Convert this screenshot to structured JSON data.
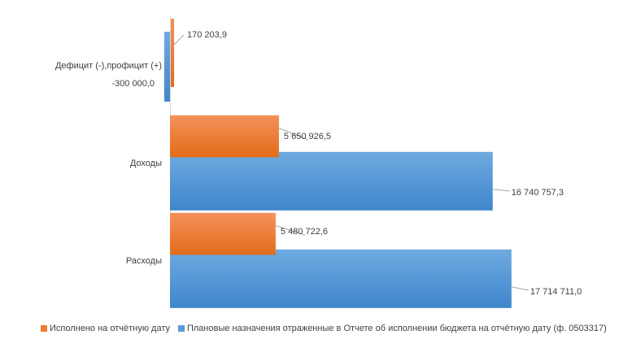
{
  "chart_data": {
    "type": "bar",
    "orientation": "horizontal",
    "categories": [
      "Дефицит (-),профицит (+)",
      "Доходы",
      "Расходы"
    ],
    "series": [
      {
        "name": "Исполнено на отчётную дату",
        "color": "#ED7D31",
        "values": [
          170203.9,
          5650926.5,
          5480722.6
        ],
        "labels": [
          "170 203,9",
          "5 650 926,5",
          "5 480 722,6"
        ]
      },
      {
        "name": "Плановые назначения отраженные в Отчете об исполнении бюджета на отчётную дату (ф. 0503317)",
        "color": "#5B9BD5",
        "values": [
          -300000.0,
          16740757.3,
          17714711.0
        ],
        "labels": [
          "-300 000,0",
          "16 740 757,3",
          "17 714 711,0"
        ]
      }
    ],
    "legend_position": "bottom",
    "grid": false,
    "gradient": true
  }
}
